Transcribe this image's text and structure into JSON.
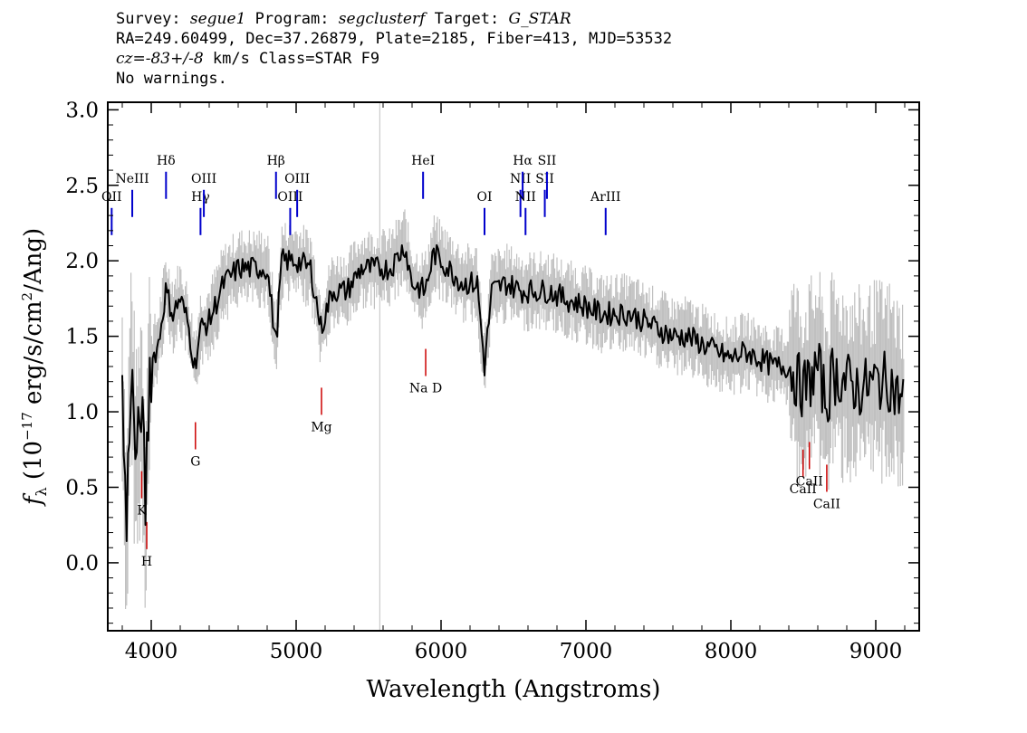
{
  "header": {
    "line1": {
      "survey_label": "Survey: ",
      "survey": "segue1",
      "program_label": " Program: ",
      "program": "segclusterf",
      "target_label": " Target: ",
      "target": "G_STAR"
    },
    "line2": "RA=249.60499, Dec=37.26879, Plate=2185, Fiber=413, MJD=53532",
    "line3": {
      "cz_label": "cz",
      "cz_value": "=-83+/-8",
      "rest": " km/s Class=STAR F9"
    },
    "line4": "No warnings."
  },
  "chart_data": {
    "type": "line",
    "xlabel": "Wavelength (Angstroms)",
    "ylabel_prefix": "f",
    "ylabel_sub": "λ",
    "ylabel_units_a": " (10",
    "ylabel_exp": "−17",
    "ylabel_units_b": " erg/s/cm",
    "ylabel_exp2": "2",
    "ylabel_units_c": "/Ang)",
    "xlim": [
      3700,
      9300
    ],
    "ylim": [
      -0.45,
      3.05
    ],
    "xticks": [
      4000,
      5000,
      6000,
      7000,
      8000,
      9000
    ],
    "xtick_labels": [
      "4000",
      "5000",
      "6000",
      "7000",
      "8000",
      "9000"
    ],
    "yticks": [
      0.0,
      0.5,
      1.0,
      1.5,
      2.0,
      2.5,
      3.0
    ],
    "ytick_labels": [
      "0.0",
      "0.5",
      "1.0",
      "1.5",
      "2.0",
      "2.5",
      "3.0"
    ],
    "sky_line_x": 5577,
    "colors": {
      "flux": "#000000",
      "noise_band": "#c0c0c0",
      "emission": "#0000cc",
      "absorption": "#cc0000"
    },
    "series": [
      {
        "role": "flux",
        "x": [
          3800,
          3830,
          3860,
          3900,
          3930,
          3960,
          3990,
          4050,
          4100,
          4150,
          4200,
          4250,
          4300,
          4340,
          4400,
          4500,
          4600,
          4700,
          4800,
          4861,
          4900,
          5000,
          5100,
          5172,
          5250,
          5350,
          5450,
          5550,
          5650,
          5750,
          5800,
          5890,
          5950,
          6050,
          6150,
          6250,
          6300,
          6350,
          6450,
          6563,
          6650,
          6750,
          6850,
          7000,
          7100,
          7200,
          7300,
          7400,
          7500,
          7600,
          7700,
          7800,
          7900,
          8000,
          8100,
          8200,
          8300,
          8400,
          8498,
          8542,
          8600,
          8662,
          8700,
          8800,
          8900,
          9000,
          9100,
          9150,
          9200
        ],
        "y": [
          1.1,
          0.2,
          1.3,
          0.6,
          1.1,
          0.4,
          1.3,
          1.45,
          1.8,
          1.65,
          1.75,
          1.6,
          1.3,
          1.55,
          1.6,
          1.85,
          1.95,
          1.95,
          1.95,
          1.45,
          2.0,
          2.0,
          1.95,
          1.55,
          1.8,
          1.8,
          1.95,
          1.95,
          1.95,
          2.1,
          1.85,
          1.8,
          2.05,
          1.95,
          1.85,
          1.85,
          1.3,
          1.8,
          1.85,
          1.8,
          1.8,
          1.8,
          1.75,
          1.7,
          1.65,
          1.65,
          1.65,
          1.6,
          1.55,
          1.5,
          1.5,
          1.45,
          1.4,
          1.35,
          1.4,
          1.35,
          1.3,
          1.3,
          1.15,
          1.2,
          1.3,
          1.05,
          1.25,
          1.2,
          1.15,
          1.2,
          1.2,
          1.1,
          1.1
        ]
      }
    ],
    "emission_lines": [
      {
        "name": "OII",
        "x": 3727
      },
      {
        "name": "NeIII",
        "x": 3869
      },
      {
        "name": "Hδ",
        "x": 4102
      },
      {
        "name": "Hγ",
        "x": 4340
      },
      {
        "name": "OIII",
        "x": 4363
      },
      {
        "name": "Hβ",
        "x": 4861
      },
      {
        "name": "OIII",
        "x": 4959
      },
      {
        "name": "OIII",
        "x": 5007
      },
      {
        "name": "HeI",
        "x": 5876
      },
      {
        "name": "OI",
        "x": 6300
      },
      {
        "name": "NII",
        "x": 6548
      },
      {
        "name": "Hα",
        "x": 6563
      },
      {
        "name": "NII",
        "x": 6583
      },
      {
        "name": "SII",
        "x": 6716
      },
      {
        "name": "SII",
        "x": 6731
      },
      {
        "name": "ArIII",
        "x": 7136
      }
    ],
    "absorption_lines": [
      {
        "name": "K",
        "x": 3934
      },
      {
        "name": "H",
        "x": 3969
      },
      {
        "name": "G",
        "x": 4305
      },
      {
        "name": "Mg",
        "x": 5175
      },
      {
        "name": "Na D",
        "x": 5894
      },
      {
        "name": "CaII",
        "x": 8498
      },
      {
        "name": "CaII",
        "x": 8542
      },
      {
        "name": "CaII",
        "x": 8662
      }
    ]
  }
}
